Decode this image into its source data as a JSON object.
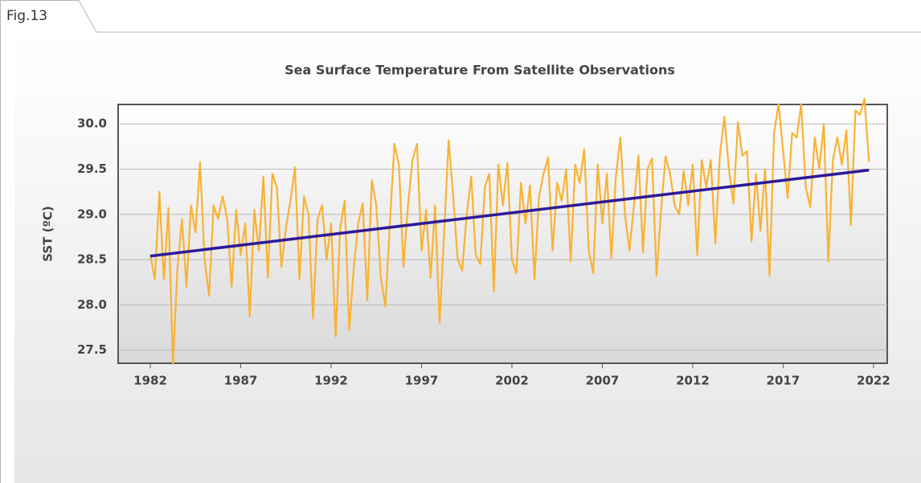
{
  "figure_label": "Fig.13",
  "chart_data": {
    "type": "line",
    "title": "Sea Surface Temperature From Satellite Observations",
    "ylabel": "SST (ºC)",
    "xlim": [
      1980.22,
      2022.76
    ],
    "ylim": [
      27.355,
      30.215
    ],
    "xticks": [
      1982,
      1987,
      1992,
      1997,
      2002,
      2007,
      2012,
      2017,
      2022
    ],
    "yticks": [
      {
        "value": 27.5,
        "label": "27.5"
      },
      {
        "value": 28,
        "label": "28.0"
      },
      {
        "value": 28.5,
        "label": "28.5"
      },
      {
        "value": 29,
        "label": "29.0"
      },
      {
        "value": 29.5,
        "label": "29.5"
      },
      {
        "value": 30,
        "label": "30.0"
      }
    ],
    "grid": true,
    "series": [
      {
        "color": "#f9b233",
        "x": [
          1982,
          1982.25,
          1982.5,
          1982.75,
          1983,
          1983.25,
          1983.5,
          1983.75,
          1984,
          1984.25,
          1984.5,
          1984.75,
          1985,
          1985.25,
          1985.5,
          1985.75,
          1986,
          1986.25,
          1986.5,
          1986.75,
          1987,
          1987.25,
          1987.5,
          1987.75,
          1988,
          1988.25,
          1988.5,
          1988.75,
          1989,
          1989.25,
          1989.5,
          1989.75,
          1990,
          1990.25,
          1990.5,
          1990.75,
          1991,
          1991.25,
          1991.5,
          1991.75,
          1992,
          1992.25,
          1992.5,
          1992.75,
          1993,
          1993.25,
          1993.5,
          1993.75,
          1994,
          1994.25,
          1994.5,
          1994.75,
          1995,
          1995.25,
          1995.5,
          1995.75,
          1996,
          1996.25,
          1996.5,
          1996.75,
          1997,
          1997.25,
          1997.5,
          1997.75,
          1998,
          1998.25,
          1998.5,
          1998.75,
          1999,
          1999.25,
          1999.5,
          1999.75,
          2000,
          2000.25,
          2000.5,
          2000.75,
          2001,
          2001.25,
          2001.5,
          2001.75,
          2002,
          2002.25,
          2002.5,
          2002.75,
          2003,
          2003.25,
          2003.5,
          2003.75,
          2004,
          2004.25,
          2004.5,
          2004.75,
          2005,
          2005.25,
          2005.5,
          2005.75,
          2006,
          2006.25,
          2006.5,
          2006.75,
          2007,
          2007.25,
          2007.5,
          2007.75,
          2008,
          2008.25,
          2008.5,
          2008.75,
          2009,
          2009.25,
          2009.5,
          2009.75,
          2010,
          2010.25,
          2010.5,
          2010.75,
          2011,
          2011.25,
          2011.5,
          2011.75,
          2012,
          2012.25,
          2012.5,
          2012.75,
          2013,
          2013.25,
          2013.5,
          2013.75,
          2014,
          2014.25,
          2014.5,
          2014.75,
          2015,
          2015.25,
          2015.5,
          2015.75,
          2016,
          2016.25,
          2016.5,
          2016.75,
          2017,
          2017.25,
          2017.5,
          2017.75,
          2018,
          2018.25,
          2018.5,
          2018.75,
          2019,
          2019.25,
          2019.5,
          2019.75,
          2020,
          2020.25,
          2020.5,
          2020.75,
          2021,
          2021.25,
          2021.5,
          2021.75
        ],
        "values": [
          28.55,
          28.28,
          29.25,
          28.28,
          29.07,
          27.35,
          28.4,
          28.95,
          28.2,
          29.1,
          28.8,
          29.58,
          28.5,
          28.1,
          29.1,
          28.95,
          29.2,
          28.95,
          28.2,
          29.05,
          28.55,
          28.9,
          27.87,
          29.05,
          28.6,
          29.42,
          28.3,
          29.45,
          29.3,
          28.42,
          28.85,
          29.15,
          29.52,
          28.28,
          29.2,
          29.0,
          27.85,
          28.95,
          29.1,
          28.5,
          28.9,
          27.65,
          28.85,
          29.15,
          27.72,
          28.4,
          28.9,
          29.12,
          28.05,
          29.38,
          29.1,
          28.3,
          27.98,
          28.9,
          29.78,
          29.55,
          28.42,
          29.1,
          29.6,
          29.78,
          28.6,
          29.05,
          28.3,
          29.1,
          27.8,
          28.8,
          29.82,
          29.2,
          28.5,
          28.38,
          29.0,
          29.42,
          28.55,
          28.45,
          29.3,
          29.45,
          28.15,
          29.55,
          29.1,
          29.57,
          28.5,
          28.35,
          29.35,
          28.9,
          29.32,
          28.28,
          29.2,
          29.45,
          29.63,
          28.6,
          29.35,
          29.15,
          29.5,
          28.48,
          29.55,
          29.35,
          29.72,
          28.6,
          28.35,
          29.55,
          28.9,
          29.45,
          28.52,
          29.42,
          29.85,
          29.0,
          28.6,
          29.1,
          29.65,
          28.58,
          29.5,
          29.62,
          28.32,
          29.05,
          29.64,
          29.45,
          29.1,
          29.0,
          29.48,
          29.1,
          29.55,
          28.55,
          29.6,
          29.3,
          29.6,
          28.68,
          29.65,
          30.08,
          29.5,
          29.12,
          30.02,
          29.65,
          29.7,
          28.7,
          29.45,
          28.82,
          29.5,
          28.32,
          29.9,
          30.22,
          29.7,
          29.18,
          29.9,
          29.85,
          30.22,
          29.3,
          29.08,
          29.85,
          29.5,
          30.0,
          28.48,
          29.6,
          29.85,
          29.55,
          29.93,
          28.88,
          30.15,
          30.1,
          30.28,
          29.58
        ]
      },
      {
        "color": "#2e1a99",
        "x": [
          1982,
          2021.75
        ],
        "values": [
          28.54,
          29.49
        ]
      }
    ]
  }
}
